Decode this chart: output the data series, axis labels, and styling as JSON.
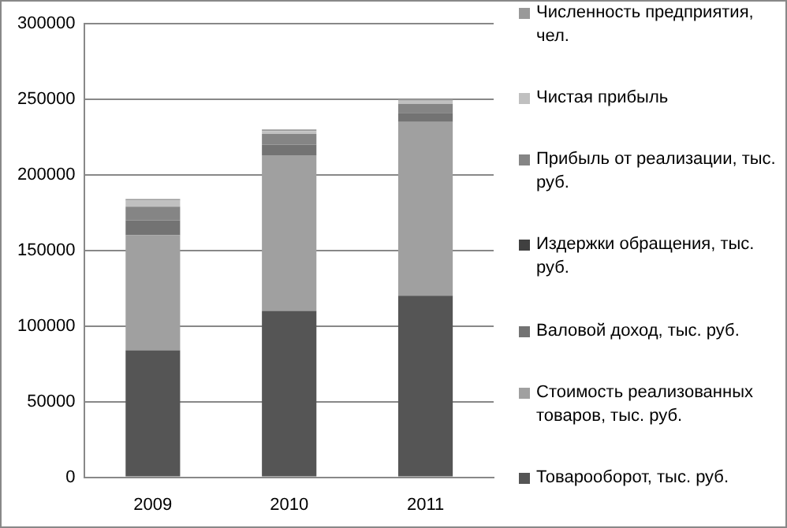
{
  "chart_data": {
    "type": "bar",
    "stacked": true,
    "categories": [
      "2009",
      "2010",
      "2011"
    ],
    "series": [
      {
        "name": "Товарооборот, тыс. руб.",
        "color": "#555555",
        "values": [
          84000,
          110000,
          120000
        ]
      },
      {
        "name": "Стоимость реализованных товаров, тыс. руб.",
        "color": "#a0a0a0",
        "values": [
          76000,
          103000,
          115000
        ]
      },
      {
        "name": "Валовой доход, тыс. руб.",
        "color": "#737373",
        "values": [
          10000,
          7000,
          6000
        ]
      },
      {
        "name": "Издержки  обращения, тыс. руб.",
        "color": "#404040",
        "values": [
          null,
          null,
          null
        ]
      },
      {
        "name": "Прибыль от реализации, тыс. руб.",
        "color": "#858585",
        "values": [
          9000,
          7000,
          6000
        ]
      },
      {
        "name": "Чистая прибыль",
        "color": "#c0c0c0",
        "values": [
          4000,
          2000,
          2000
        ]
      },
      {
        "name": "Численность предприятия,  чел.",
        "color": "#999999",
        "values": [
          1000,
          1000,
          1000
        ]
      }
    ],
    "ylim": [
      0,
      300000
    ],
    "yticks": [
      0,
      50000,
      100000,
      150000,
      200000,
      250000,
      300000
    ],
    "grid": "y",
    "legend": "right"
  }
}
